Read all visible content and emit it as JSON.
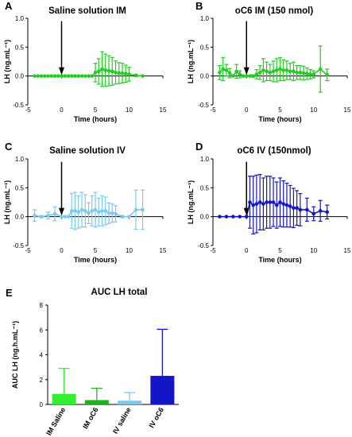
{
  "colors": {
    "green": "#22cc22",
    "light_blue": "#7ec8ee",
    "dark_blue": "#1515c8",
    "ib_green_light": "#33ee33",
    "ib_green_dark": "#22b022",
    "axis": "#000000"
  },
  "chart_data": [
    {
      "id": "A",
      "type": "line",
      "panel_letter": "A",
      "title": "Saline solution IM",
      "xlabel": "Time (hours)",
      "ylabel": "LH (ng.mL⁻¹)",
      "xlim": [
        -5,
        15
      ],
      "ylim": [
        -0.5,
        1.0
      ],
      "x_ticks": [
        -5,
        0,
        5,
        10,
        15
      ],
      "x_tick_labels": [
        "-5",
        "0",
        "5",
        "10",
        "15"
      ],
      "y_ticks": [
        -0.5,
        0.0,
        0.5,
        1.0
      ],
      "y_tick_labels": [
        "-0.5",
        "0.0",
        "0.5",
        "1.0"
      ],
      "color": "green",
      "arrow_x": 0,
      "series": [
        {
          "x": [
            -4,
            -3.5,
            -3,
            -2.5,
            -2,
            -1.5,
            -1,
            -0.5,
            0,
            0.5,
            1,
            1.5,
            2,
            2.5,
            3,
            3.5,
            4,
            4.5,
            5,
            5.5,
            6,
            6.5,
            7,
            7.5,
            8,
            8.5,
            9,
            9.5,
            10,
            11,
            12
          ],
          "y": [
            0,
            0,
            0,
            0,
            0,
            0,
            0,
            0,
            0,
            0,
            0,
            0,
            0,
            0,
            0,
            0,
            0,
            0,
            0.06,
            0.08,
            0.12,
            0.1,
            0.09,
            0.08,
            0.06,
            0.05,
            0.05,
            0.04,
            0.03,
            0.01,
            0.0
          ],
          "err": [
            0,
            0,
            0,
            0,
            0,
            0,
            0,
            0,
            0,
            0,
            0,
            0,
            0,
            0,
            0,
            0,
            0,
            0,
            0.16,
            0.22,
            0.3,
            0.28,
            0.26,
            0.24,
            0.2,
            0.18,
            0.17,
            0.15,
            0.12,
            0.02,
            0.0
          ]
        }
      ]
    },
    {
      "id": "B",
      "type": "line",
      "panel_letter": "B",
      "title": "oC6 IM (150 nmol)",
      "xlabel": "Time (hours)",
      "ylabel": "LH (ng.mL⁻¹)",
      "xlim": [
        -5,
        15
      ],
      "ylim": [
        -0.5,
        1.0
      ],
      "x_ticks": [
        -5,
        0,
        5,
        10,
        15
      ],
      "x_tick_labels": [
        "-5",
        "0",
        "5",
        "10",
        "15"
      ],
      "y_ticks": [
        -0.5,
        0.0,
        0.5,
        1.0
      ],
      "y_tick_labels": [
        "-0.5",
        "0.0",
        "0.5",
        "1.0"
      ],
      "color": "green",
      "arrow_x": 0,
      "series": [
        {
          "x": [
            -4,
            -3.5,
            -3,
            -2.5,
            -2,
            -1.5,
            -1,
            -0.5,
            0,
            0.5,
            1,
            1.5,
            2,
            2.5,
            3,
            3.5,
            4,
            4.5,
            5,
            5.5,
            6,
            6.5,
            7,
            7.5,
            8,
            8.5,
            9,
            9.5,
            10,
            11,
            12
          ],
          "y": [
            0.06,
            0.12,
            0.1,
            0.05,
            0.0,
            0.08,
            0.03,
            0.0,
            0.0,
            0.0,
            0.0,
            0.03,
            0.06,
            0.1,
            0.08,
            0.06,
            0.08,
            0.1,
            0.12,
            0.1,
            0.1,
            0.08,
            0.08,
            0.06,
            0.06,
            0.05,
            0.04,
            0.03,
            0.03,
            0.12,
            0.02
          ],
          "err": [
            0.12,
            0.2,
            0.1,
            0.08,
            0.0,
            0.12,
            0.06,
            0.0,
            0.0,
            0.0,
            0.02,
            0.08,
            0.12,
            0.2,
            0.16,
            0.14,
            0.18,
            0.2,
            0.2,
            0.18,
            0.16,
            0.14,
            0.16,
            0.12,
            0.12,
            0.12,
            0.1,
            0.08,
            0.06,
            0.4,
            0.1
          ]
        }
      ]
    },
    {
      "id": "C",
      "type": "line",
      "panel_letter": "C",
      "title": "Saline solution IV",
      "xlabel": "Time (hours)",
      "ylabel": "LH (ng.mL⁻¹)",
      "xlim": [
        -5,
        15
      ],
      "ylim": [
        -0.5,
        1.0
      ],
      "x_ticks": [
        -5,
        0,
        5,
        10,
        15
      ],
      "x_tick_labels": [
        "-5",
        "0",
        "5",
        "10",
        "15"
      ],
      "y_ticks": [
        -0.5,
        0.0,
        0.5,
        1.0
      ],
      "y_tick_labels": [
        "-0.5",
        "0.0",
        "0.5",
        "1.0"
      ],
      "color": "light_blue",
      "arrow_x": 0,
      "series": [
        {
          "x": [
            -4,
            -3,
            -2,
            -1,
            0,
            0.5,
            1,
            1.5,
            2,
            2.5,
            3,
            3.5,
            4,
            4.5,
            5,
            5.5,
            6,
            6.5,
            7,
            7.5,
            8,
            9,
            10,
            11,
            12
          ],
          "y": [
            0.02,
            0.0,
            0.02,
            0.05,
            0.0,
            0.0,
            0.0,
            0.1,
            0.1,
            0.08,
            0.12,
            0.1,
            0.06,
            0.1,
            0.12,
            0.08,
            0.1,
            0.1,
            0.06,
            0.06,
            0.05,
            0.0,
            0.0,
            0.12,
            0.12
          ],
          "err": [
            0.1,
            0.02,
            0.06,
            0.12,
            0.0,
            0.0,
            0.0,
            0.3,
            0.32,
            0.28,
            0.3,
            0.28,
            0.18,
            0.26,
            0.3,
            0.24,
            0.26,
            0.24,
            0.18,
            0.16,
            0.14,
            0.02,
            0.0,
            0.34,
            0.34
          ]
        }
      ]
    },
    {
      "id": "D",
      "type": "line",
      "panel_letter": "D",
      "title": "oC6 IV (150nmol)",
      "xlabel": "Time (hours)",
      "ylabel": "LH (ng.mL⁻¹)",
      "xlim": [
        -5,
        15
      ],
      "ylim": [
        -0.5,
        1.0
      ],
      "x_ticks": [
        -5,
        0,
        5,
        10,
        15
      ],
      "x_tick_labels": [
        "-5",
        "0",
        "5",
        "10",
        "15"
      ],
      "y_ticks": [
        -0.5,
        0.0,
        0.5,
        1.0
      ],
      "y_tick_labels": [
        "-0.5",
        "0.0",
        "0.5",
        "1.0"
      ],
      "color": "dark_blue",
      "arrow_x": 0,
      "series": [
        {
          "x": [
            -4,
            -3,
            -2,
            -1,
            0,
            0.5,
            1,
            1.5,
            2,
            2.5,
            3,
            3.5,
            4,
            4.5,
            5,
            5.5,
            6,
            6.5,
            7,
            7.5,
            8,
            9,
            10,
            11,
            12
          ],
          "y": [
            0,
            0,
            0,
            0,
            0,
            0.25,
            0.2,
            0.22,
            0.25,
            0.22,
            0.25,
            0.25,
            0.25,
            0.2,
            0.25,
            0.22,
            0.2,
            0.18,
            0.15,
            0.15,
            0.12,
            0.12,
            0.05,
            0.1,
            0.08
          ],
          "err": [
            0,
            0,
            0,
            0,
            0,
            0.45,
            0.5,
            0.5,
            0.48,
            0.45,
            0.45,
            0.45,
            0.42,
            0.4,
            0.42,
            0.4,
            0.38,
            0.36,
            0.34,
            0.3,
            0.28,
            0.2,
            0.12,
            0.18,
            0.12
          ]
        }
      ]
    },
    {
      "id": "E",
      "type": "bar",
      "panel_letter": "E",
      "title": "AUC LH total",
      "xlabel": "",
      "ylabel": "AUC LH (ng.h.mL⁻¹)",
      "ylim": [
        0,
        8
      ],
      "y_ticks": [
        0,
        2,
        4,
        6,
        8
      ],
      "y_tick_labels": [
        "0",
        "2",
        "4",
        "6",
        "8"
      ],
      "categories": [
        "IM Saline",
        "IM oC6",
        "IV saline",
        "IV oC6"
      ],
      "values": [
        0.85,
        0.35,
        0.3,
        2.3
      ],
      "err": [
        2.05,
        0.95,
        0.65,
        3.75
      ],
      "bar_colors": [
        "ib_green_light",
        "ib_green_dark",
        "light_blue",
        "dark_blue"
      ]
    }
  ]
}
